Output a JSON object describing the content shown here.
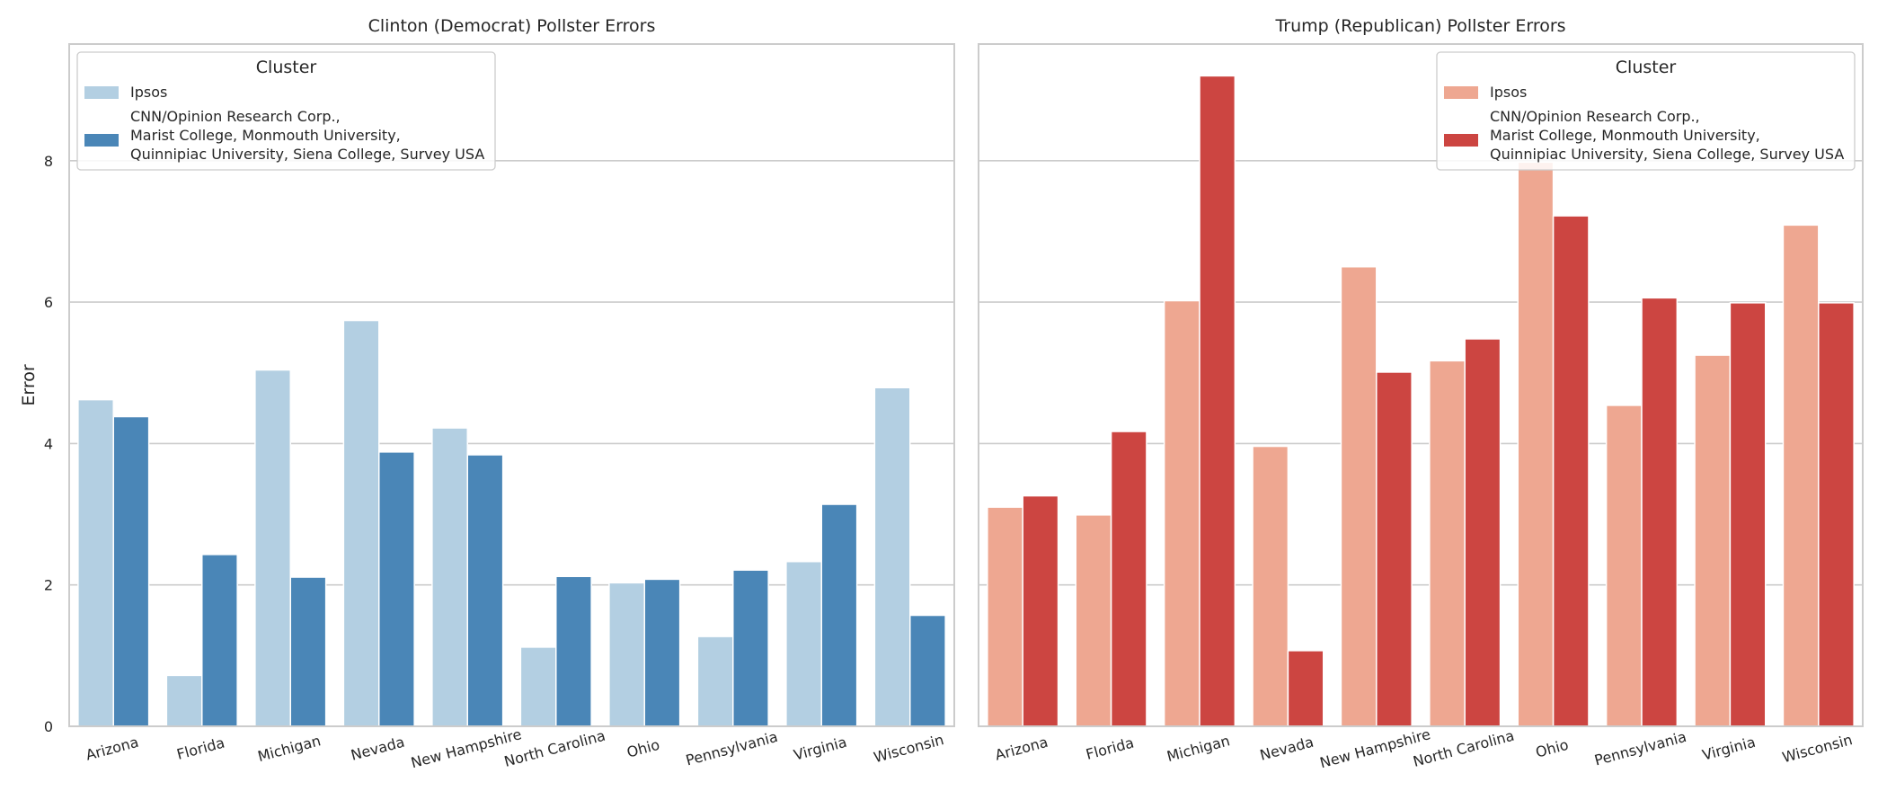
{
  "chart_data": [
    {
      "type": "bar",
      "title": "Clinton (Democrat) Pollster Errors",
      "xlabel": "",
      "ylabel": "Error",
      "ylim": [
        0,
        9.65
      ],
      "yticks": [
        0,
        2,
        4,
        6,
        8
      ],
      "grid": true,
      "legend_placement": "upper-left",
      "legend_title": "Cluster",
      "categories": [
        "Arizona",
        "Florida",
        "Michigan",
        "Nevada",
        "New Hampshire",
        "North Carolina",
        "Ohio",
        "Pennsylvania",
        "Virginia",
        "Wisconsin"
      ],
      "series": [
        {
          "name": "Ipsos",
          "color": "#b3cfe2",
          "values": [
            4.62,
            0.72,
            5.04,
            5.74,
            4.22,
            1.12,
            2.03,
            1.27,
            2.33,
            4.79
          ]
        },
        {
          "name": "CNN/Opinion Research Corp.,\nMarist College, Monmouth University,\nQuinnipiac University, Siena College, Survey USA",
          "color": "#4a86b7",
          "values": [
            4.38,
            2.43,
            2.11,
            3.88,
            3.84,
            2.12,
            2.08,
            2.21,
            3.14,
            1.57
          ]
        }
      ]
    },
    {
      "type": "bar",
      "title": "Trump (Republican) Pollster Errors",
      "xlabel": "",
      "ylabel": "",
      "ylim": [
        0,
        9.65
      ],
      "yticks": [
        0,
        2,
        4,
        6,
        8
      ],
      "grid": true,
      "legend_placement": "upper-right",
      "legend_title": "Cluster",
      "categories": [
        "Arizona",
        "Florida",
        "Michigan",
        "Nevada",
        "New Hampshire",
        "North Carolina",
        "Ohio",
        "Pennsylvania",
        "Virginia",
        "Wisconsin"
      ],
      "series": [
        {
          "name": "Ipsos",
          "color": "#eea791",
          "values": [
            3.1,
            2.99,
            6.02,
            3.96,
            6.5,
            5.17,
            7.98,
            4.54,
            5.25,
            7.09
          ]
        },
        {
          "name": "CNN/Opinion Research Corp.,\nMarist College, Monmouth University,\nQuinnipiac University, Siena College, Survey USA",
          "color": "#cc4541",
          "values": [
            3.26,
            4.17,
            9.2,
            1.07,
            5.01,
            5.48,
            7.22,
            6.06,
            5.99,
            5.99
          ]
        }
      ]
    }
  ]
}
